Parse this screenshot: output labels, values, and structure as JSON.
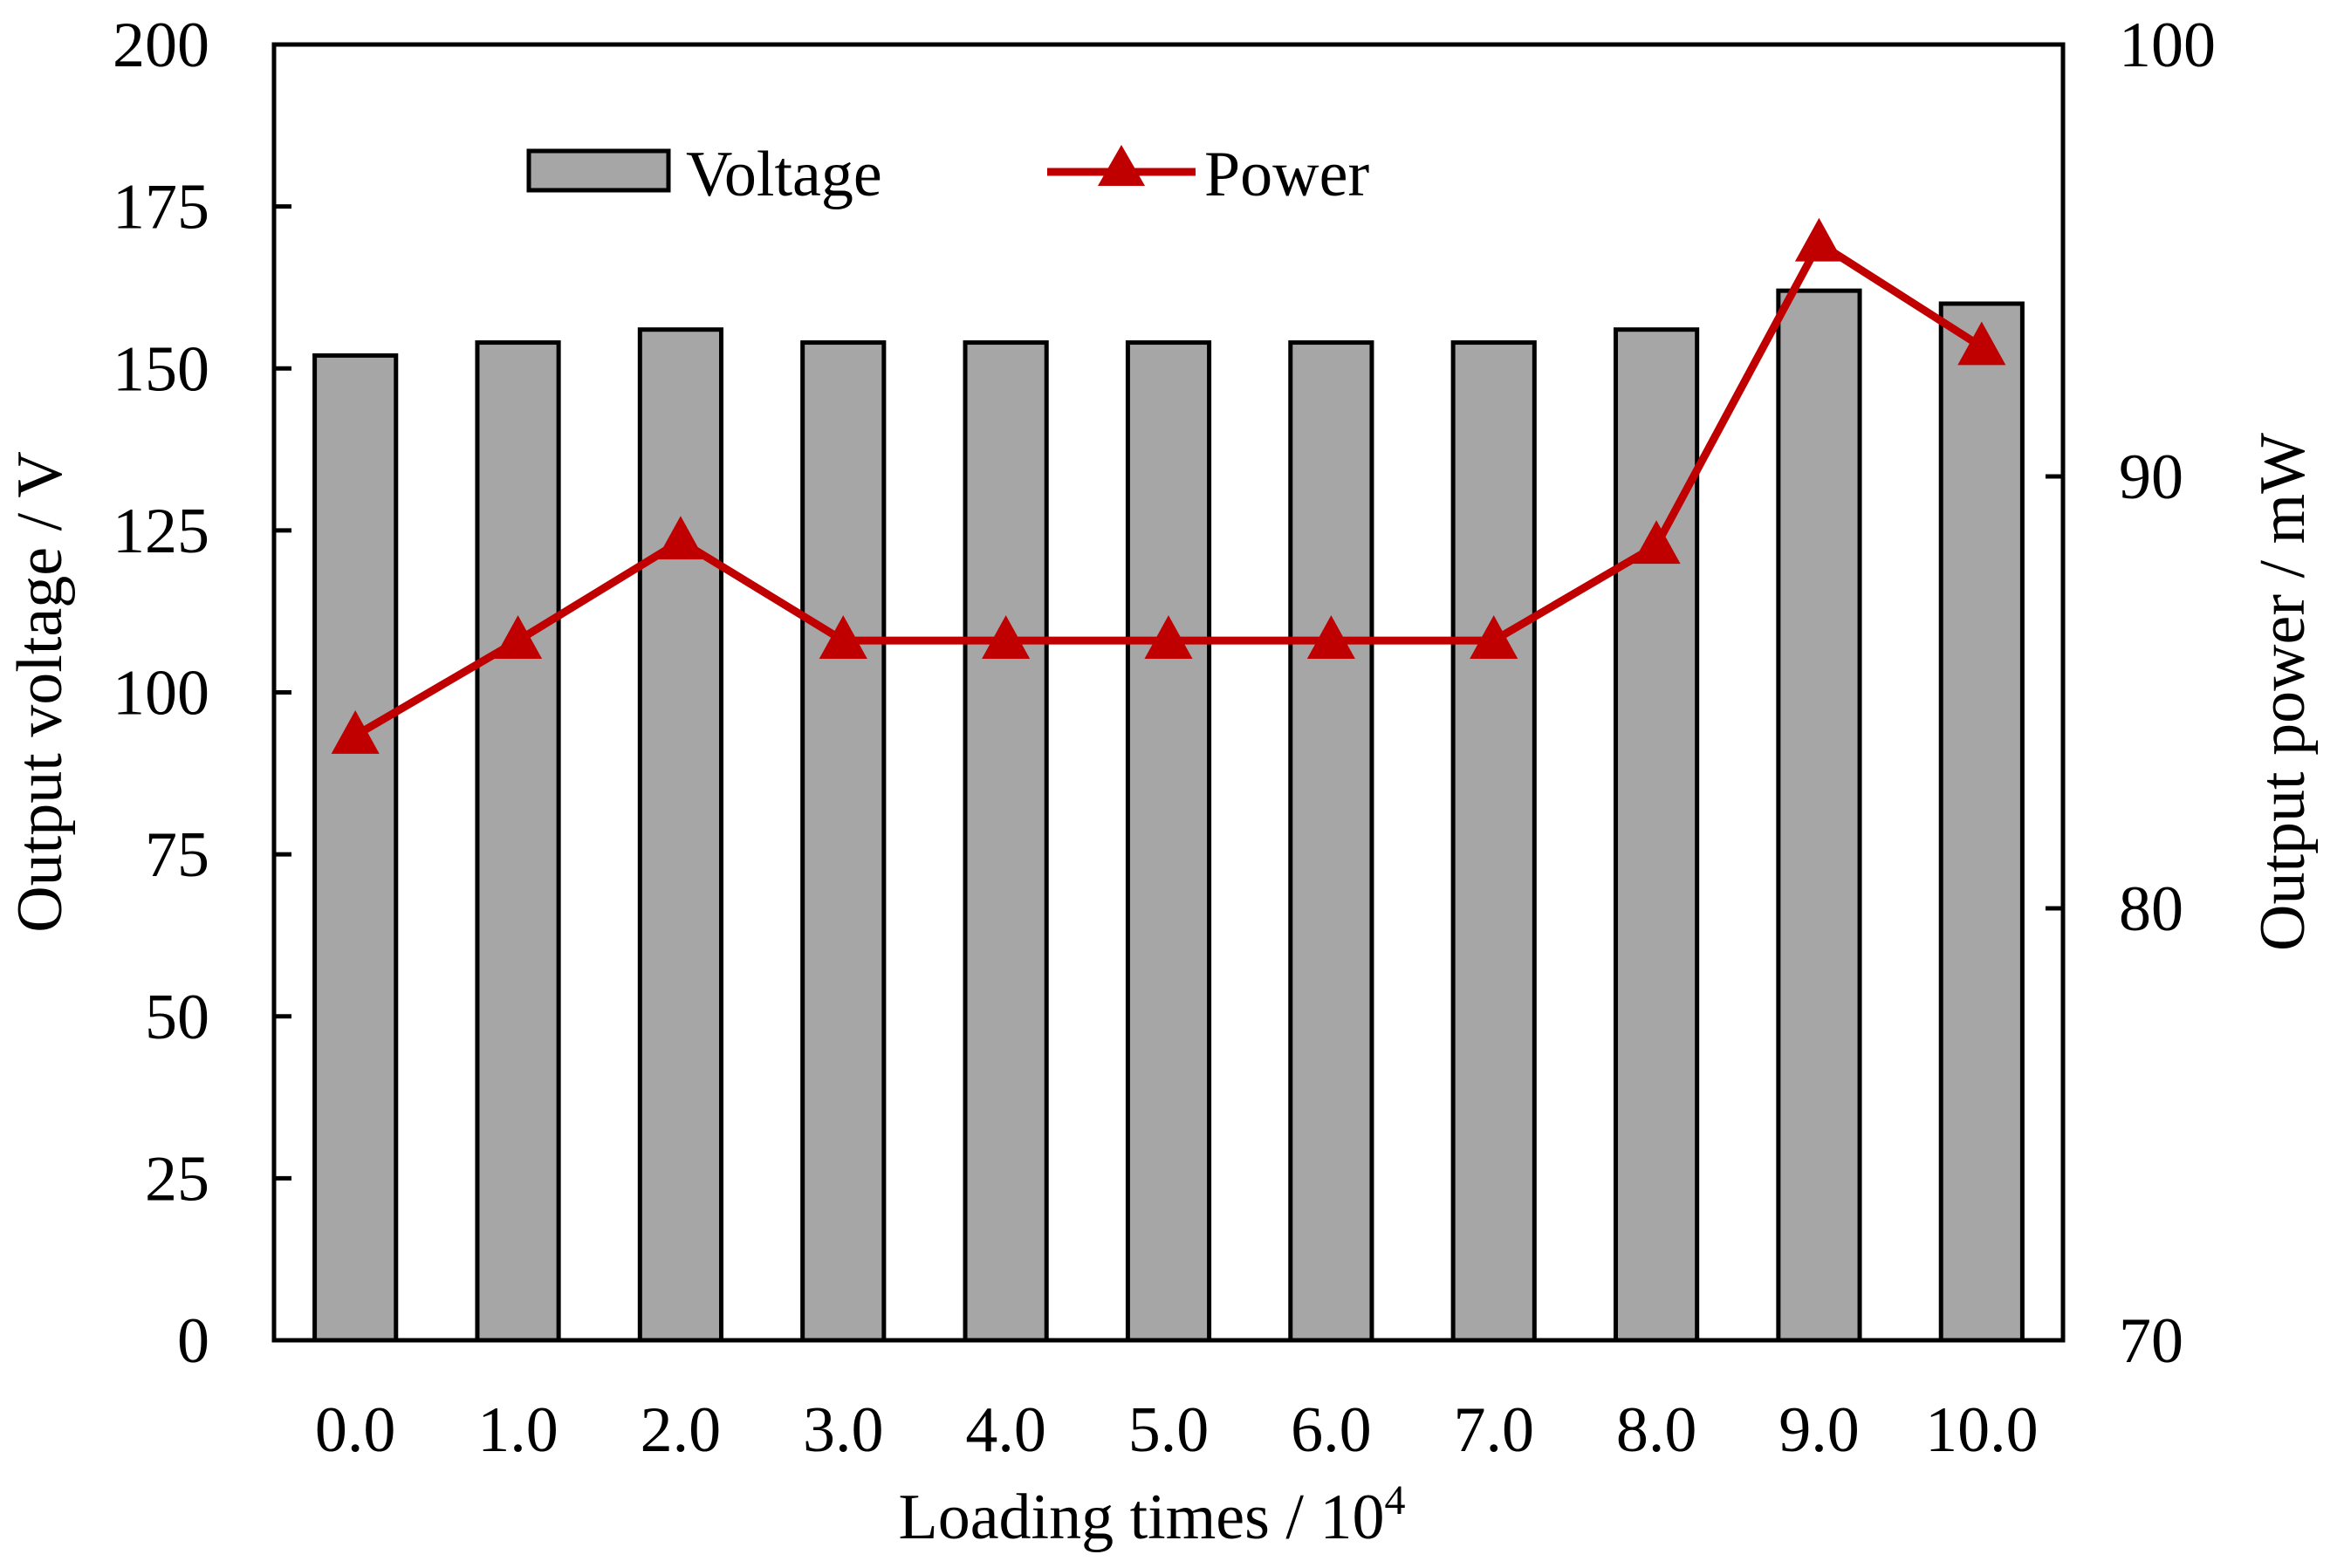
{
  "chart_data": {
    "type": "bar",
    "categories": [
      "0.0",
      "1.0",
      "2.0",
      "3.0",
      "4.0",
      "5.0",
      "6.0",
      "7.0",
      "8.0",
      "9.0",
      "10.0"
    ],
    "series": [
      {
        "name": "Voltage",
        "kind": "bar",
        "axis": "left",
        "values": [
          152,
          154,
          156,
          154,
          154,
          154,
          154,
          154,
          156,
          162,
          160
        ],
        "color": "#a6a6a6"
      },
      {
        "name": "Power",
        "kind": "line",
        "axis": "right",
        "marker": "triangle",
        "values": [
          84,
          86.2,
          88.5,
          86.2,
          86.2,
          86.2,
          86.2,
          86.2,
          88.4,
          95.4,
          93
        ]
      }
    ],
    "xlabel_text": "Loading times / 10",
    "xlabel_superscript": "4",
    "ylabel": "Output voltage / V",
    "y2label": "Output power / mW",
    "ylim": [
      0,
      200
    ],
    "y2lim": [
      70,
      100
    ],
    "yticks": [
      "0",
      "25",
      "50",
      "75",
      "100",
      "125",
      "150",
      "175",
      "200"
    ],
    "y2ticks": [
      "70",
      "80",
      "90",
      "100"
    ],
    "grid": false,
    "legend_position": "top-left",
    "colors": {
      "bar": "#a6a6a6",
      "line": "#c00000",
      "axis": "#000000"
    }
  }
}
